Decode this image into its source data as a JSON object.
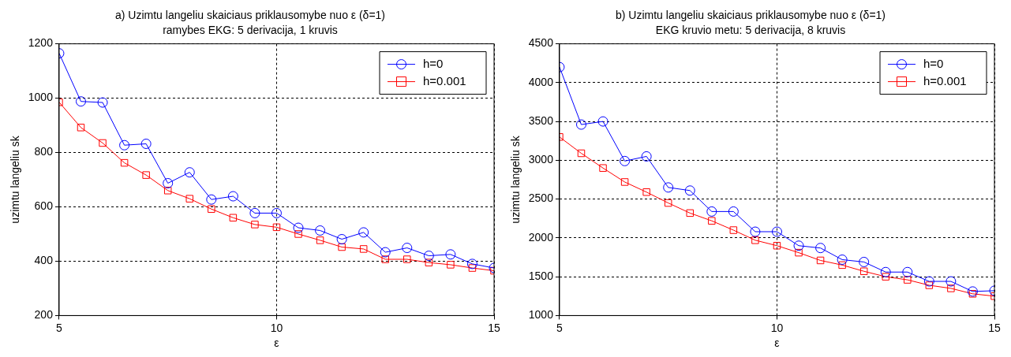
{
  "chart_data": [
    {
      "type": "line",
      "title": "a) Uzimtu langeliu skaiciaus priklausomybe nuo ε (δ=1)",
      "subtitle": "ramybes EKG: 5 derivacija, 1 kruvis",
      "xlabel": "ε",
      "ylabel": "uzimtu langeliu sk",
      "x": [
        5,
        5.5,
        6,
        6.5,
        7,
        7.5,
        8,
        8.5,
        9,
        9.5,
        10,
        10.5,
        11,
        11.5,
        12,
        12.5,
        13,
        13.5,
        14,
        14.5,
        15
      ],
      "xlim": [
        5,
        15
      ],
      "xticks": [
        5,
        10,
        15
      ],
      "ylim": [
        200,
        1200
      ],
      "yticks": [
        200,
        400,
        600,
        800,
        1000,
        1200
      ],
      "grid": true,
      "legend": "top right",
      "series": [
        {
          "name": "h=0",
          "color": "#0000ff",
          "marker": "circle",
          "values": [
            1165,
            988,
            984,
            827,
            832,
            687,
            727,
            627,
            639,
            577,
            577,
            523,
            513,
            481,
            506,
            433,
            449,
            420,
            425,
            390,
            375
          ]
        },
        {
          "name": "h=0.001",
          "color": "#ff0000",
          "marker": "square",
          "values": [
            985,
            892,
            835,
            762,
            717,
            660,
            630,
            592,
            560,
            535,
            525,
            500,
            477,
            452,
            445,
            407,
            407,
            395,
            387,
            375,
            365
          ]
        }
      ]
    },
    {
      "type": "line",
      "title": "b) Uzimtu langeliu skaiciaus priklausomybe nuo ε (δ=1)",
      "subtitle": "EKG kruvio metu: 5 derivacija, 8 kruvis",
      "xlabel": "ε",
      "ylabel": "uzimtu langeliu sk",
      "x": [
        5,
        5.5,
        6,
        6.5,
        7,
        7.5,
        8,
        8.5,
        9,
        9.5,
        10,
        10.5,
        11,
        11.5,
        12,
        12.5,
        13,
        13.5,
        14,
        14.5,
        15
      ],
      "xlim": [
        5,
        15
      ],
      "xticks": [
        5,
        10,
        15
      ],
      "ylim": [
        1000,
        4500
      ],
      "yticks": [
        1000,
        1500,
        2000,
        2500,
        3000,
        3500,
        4000,
        4500
      ],
      "grid": true,
      "legend": "top right",
      "series": [
        {
          "name": "h=0",
          "color": "#0000ff",
          "marker": "circle",
          "values": [
            4200,
            3460,
            3500,
            2990,
            3050,
            2650,
            2610,
            2340,
            2340,
            2080,
            2080,
            1900,
            1870,
            1720,
            1690,
            1560,
            1560,
            1440,
            1440,
            1310,
            1320
          ]
        },
        {
          "name": "h=0.001",
          "color": "#ff0000",
          "marker": "square",
          "values": [
            3300,
            3090,
            2900,
            2720,
            2590,
            2450,
            2320,
            2220,
            2100,
            1970,
            1900,
            1810,
            1710,
            1650,
            1570,
            1500,
            1460,
            1390,
            1350,
            1280,
            1250
          ]
        }
      ]
    }
  ]
}
